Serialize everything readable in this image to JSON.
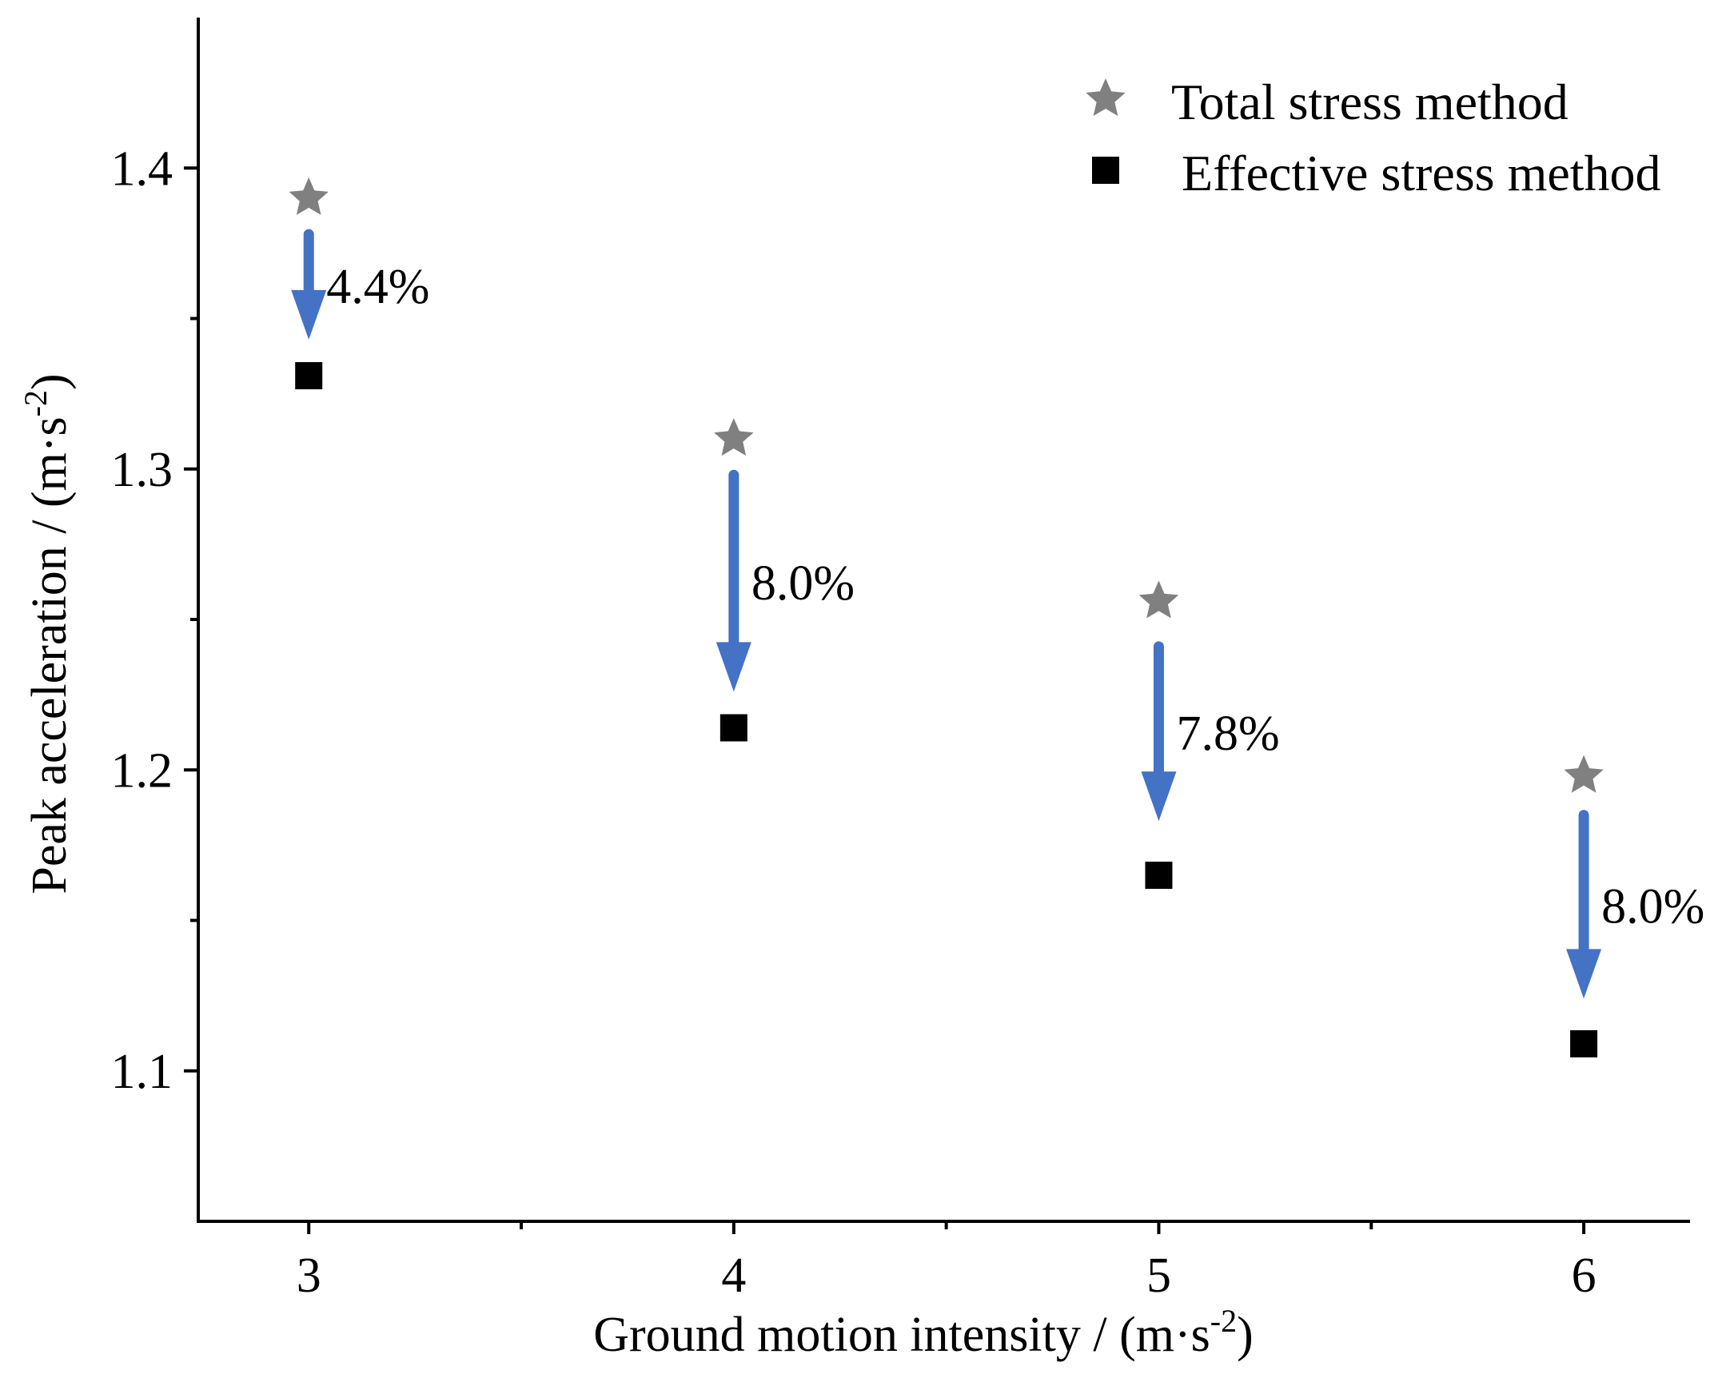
{
  "chart_data": {
    "type": "scatter",
    "title": "",
    "xlabel": "Ground motion intensity / (m·s",
    "xlabel_sup": "-2",
    "xlabel_close": ")",
    "ylabel": "Peak acceleration / (m·s",
    "ylabel_sup": "-2",
    "ylabel_close": ")",
    "xlim": [
      2.74,
      6.25
    ],
    "ylim": [
      1.05,
      1.45
    ],
    "x_ticks": [
      3,
      4,
      5,
      6
    ],
    "x_tick_labels": [
      "3",
      "4",
      "5",
      "6"
    ],
    "x_minor_ticks": [
      3.5,
      4.5,
      5.5
    ],
    "y_ticks": [
      1.1,
      1.2,
      1.3,
      1.4
    ],
    "y_tick_labels": [
      "1.1",
      "1.2",
      "1.3",
      "1.4"
    ],
    "y_minor_ticks": [
      1.15,
      1.25,
      1.35
    ],
    "legend_position": "top-right",
    "series": [
      {
        "name": "Total stress method",
        "marker": "star",
        "color": "#808080",
        "x": [
          3,
          4,
          5,
          6
        ],
        "y": [
          1.39,
          1.31,
          1.256,
          1.198
        ]
      },
      {
        "name": "Effective stress method",
        "marker": "square",
        "color": "#000000",
        "x": [
          3,
          4,
          5,
          6
        ],
        "y": [
          1.331,
          1.214,
          1.165,
          1.109
        ]
      }
    ],
    "annotations": [
      {
        "x": 3,
        "y_start": 1.378,
        "y_end": 1.343,
        "label": "4.4%"
      },
      {
        "x": 4,
        "y_start": 1.298,
        "y_end": 1.226,
        "label": "8.0%"
      },
      {
        "x": 5,
        "y_start": 1.241,
        "y_end": 1.183,
        "label": "7.8%"
      },
      {
        "x": 6,
        "y_start": 1.185,
        "y_end": 1.124,
        "label": "8.0%"
      }
    ],
    "arrow_color": "#4472c4"
  }
}
